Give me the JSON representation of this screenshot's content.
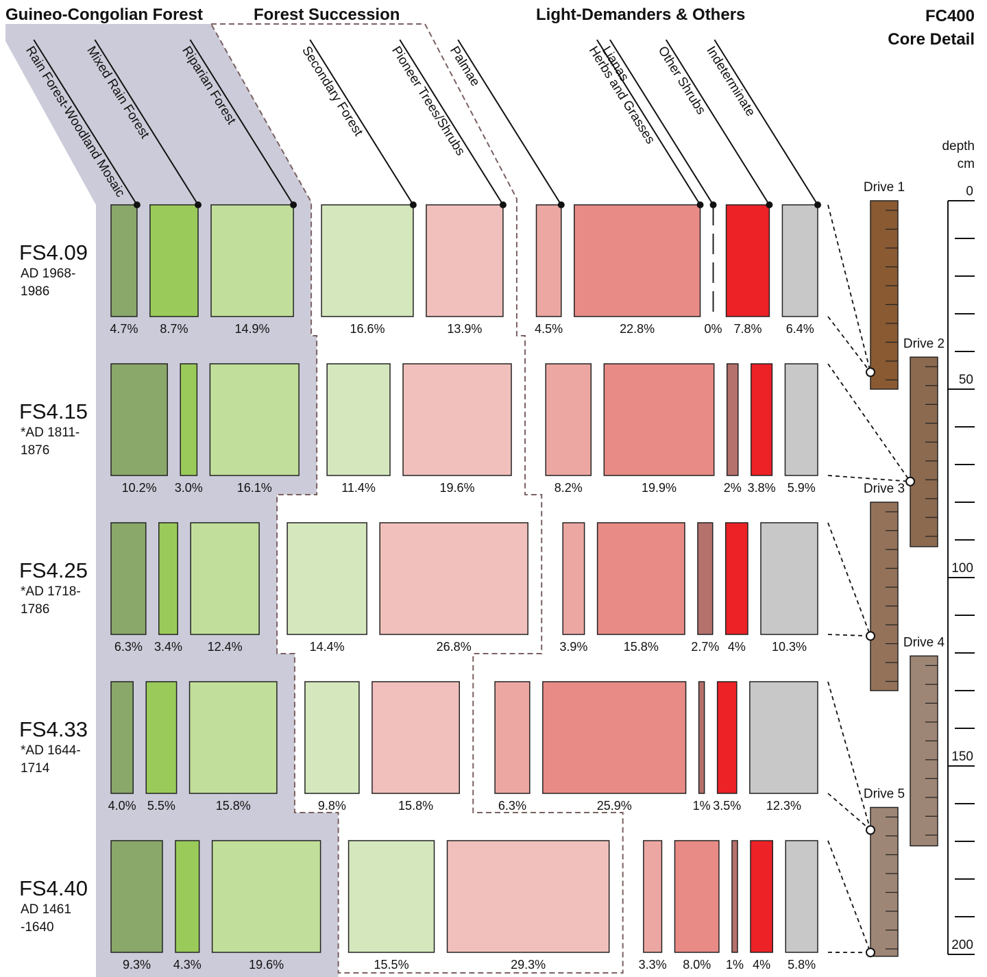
{
  "chart_data": {
    "type": "proportional-bars",
    "groups": [
      "Guineo-Congolian Forest",
      "Forest Succession",
      "Light-Demanders & Others"
    ],
    "series": [
      {
        "name": "Rain Forest-Woodland Mosaic",
        "color": "#8aa86a",
        "group": 0,
        "values": [
          4.7,
          10.2,
          6.3,
          4.0,
          9.3
        ],
        "value_labels": [
          "4.7%",
          "10.2%",
          "6.3%",
          "4.0%",
          "9.3%"
        ]
      },
      {
        "name": "Mixed Rain Forest",
        "color": "#9acb5a",
        "group": 0,
        "values": [
          8.7,
          3.0,
          3.4,
          5.5,
          4.3
        ],
        "value_labels": [
          "8.7%",
          "3.0%",
          "3.4%",
          "5.5%",
          "4.3%"
        ]
      },
      {
        "name": "Riparian Forest",
        "color": "#c1df9a",
        "group": 0,
        "values": [
          14.9,
          16.1,
          12.4,
          15.8,
          19.6
        ],
        "value_labels": [
          "14.9%",
          "16.1%",
          "12.4%",
          "15.8%",
          "19.6%"
        ]
      },
      {
        "name": "Secondary Forest",
        "color": "#d5e7bd",
        "group": 1,
        "values": [
          16.6,
          11.4,
          14.4,
          9.8,
          15.5
        ],
        "value_labels": [
          "16.6%",
          "11.4%",
          "14.4%",
          "9.8%",
          "15.5%"
        ]
      },
      {
        "name": "Pioneer Trees/Shrubs",
        "color": "#f1c0bc",
        "group": 1,
        "values": [
          13.9,
          19.6,
          26.8,
          15.8,
          29.3
        ],
        "value_labels": [
          "13.9%",
          "19.6%",
          "26.8%",
          "15.8%",
          "29.3%"
        ]
      },
      {
        "name": "Palmae",
        "color": "#eca7a2",
        "group": 2,
        "values": [
          4.5,
          8.2,
          3.9,
          6.3,
          3.3
        ],
        "value_labels": [
          "4.5%",
          "8.2%",
          "3.9%",
          "6.3%",
          "3.3%"
        ]
      },
      {
        "name": "Herbs and Grasses",
        "color": "#e88b86",
        "group": 2,
        "values": [
          22.8,
          19.9,
          15.8,
          25.9,
          8.0
        ],
        "value_labels": [
          "22.8%",
          "19.9%",
          "15.8%",
          "25.9%",
          "8.0%"
        ]
      },
      {
        "name": "Lianas",
        "color": "#b5716c",
        "group": 2,
        "values": [
          0,
          2,
          2.7,
          1,
          1
        ],
        "value_labels": [
          "0%",
          "2%",
          "2.7%",
          "1%",
          "1%"
        ]
      },
      {
        "name": "Other Shrubs",
        "color": "#ec2227",
        "group": 2,
        "values": [
          7.8,
          3.8,
          4,
          3.5,
          4
        ],
        "value_labels": [
          "7.8%",
          "3.8%",
          "4%",
          "3.5%",
          "4%"
        ]
      },
      {
        "name": "Indeterminate",
        "color": "#c8c8c8",
        "group": 2,
        "values": [
          6.4,
          5.9,
          10.3,
          12.3,
          5.8
        ],
        "value_labels": [
          "6.4%",
          "5.9%",
          "10.3%",
          "12.3%",
          "5.8%"
        ]
      }
    ],
    "samples": [
      {
        "name": "FS4.09",
        "date": [
          "AD 1968-",
          "1986"
        ],
        "depth": 45.5,
        "drive": 0
      },
      {
        "name": "FS4.15",
        "date": [
          "*AD 1811-",
          "1876"
        ],
        "depth": 74.5,
        "drive": 1
      },
      {
        "name": "FS4.25",
        "date": [
          "*AD 1718-",
          "1786"
        ],
        "depth": 115.5,
        "drive": 2
      },
      {
        "name": "FS4.33",
        "date": [
          "*AD 1644-",
          "1714"
        ],
        "depth": 167,
        "drive": 4
      },
      {
        "name": "FS4.40",
        "date": [
          "AD 1461",
          "-1640"
        ],
        "depth": 199.5,
        "drive": 4
      }
    ],
    "core": {
      "title": "FC400",
      "subtitle": "Core Detail",
      "y_label": "depth",
      "y_unit": "cm",
      "ylim": [
        0,
        200
      ],
      "yticks": [
        0,
        50,
        100,
        150,
        200
      ],
      "minor_yticks": [
        10,
        20,
        30,
        40,
        60,
        70,
        80,
        90,
        110,
        120,
        130,
        140,
        160,
        170,
        180,
        190
      ],
      "drives": [
        {
          "name": "Drive 1",
          "top": 0,
          "bottom": 50,
          "color": "#8a5a33"
        },
        {
          "name": "Drive 2",
          "top": 41.5,
          "bottom": 91.8,
          "color": "#8c6a4f"
        },
        {
          "name": "Drive 3",
          "top": 80,
          "bottom": 130,
          "color": "#94725a"
        },
        {
          "name": "Drive 4",
          "top": 120.8,
          "bottom": 171.2,
          "color": "#9e8676"
        },
        {
          "name": "Drive 5",
          "top": 161,
          "bottom": 200.5,
          "color": "#9e8676"
        }
      ]
    }
  }
}
